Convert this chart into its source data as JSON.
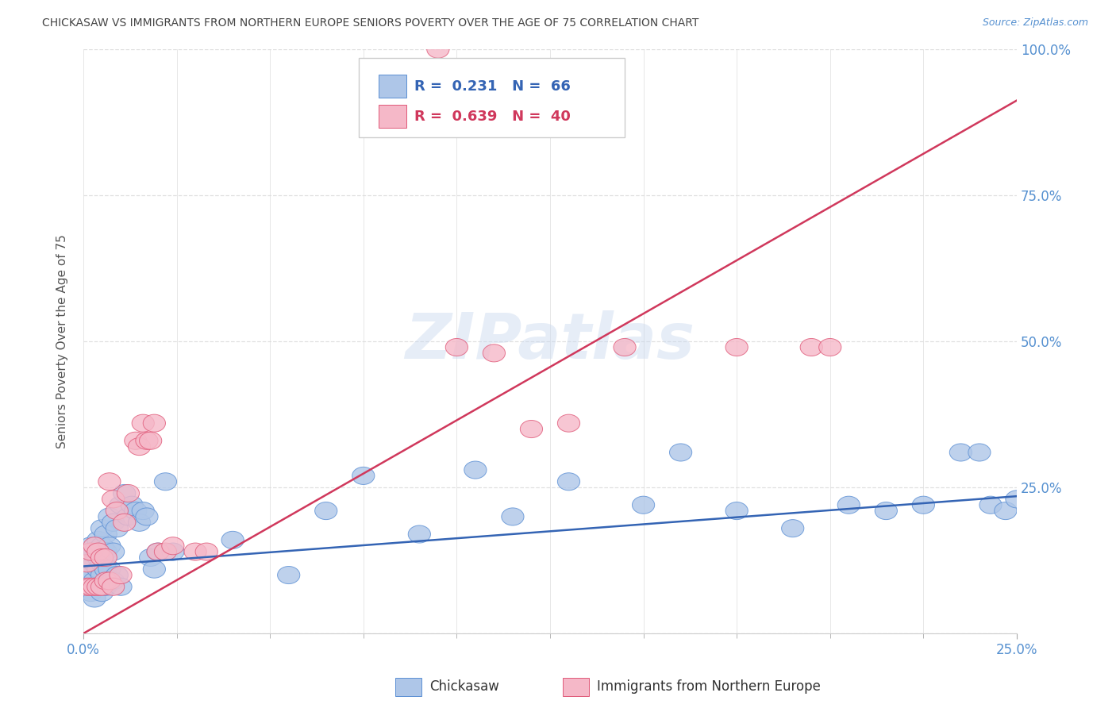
{
  "title": "CHICKASAW VS IMMIGRANTS FROM NORTHERN EUROPE SENIORS POVERTY OVER THE AGE OF 75 CORRELATION CHART",
  "source": "Source: ZipAtlas.com",
  "ylabel": "Seniors Poverty Over the Age of 75",
  "watermark": "ZIPatlas",
  "blue_label": "Chickasaw",
  "pink_label": "Immigrants from Northern Europe",
  "blue_R": "0.231",
  "blue_N": "66",
  "pink_R": "0.639",
  "pink_N": "40",
  "xlim": [
    0,
    0.25
  ],
  "ylim": [
    0,
    1.0
  ],
  "blue_color": "#aec6e8",
  "blue_edge_color": "#5b8fd4",
  "pink_color": "#f5b8c8",
  "pink_edge_color": "#e05878",
  "blue_line_color": "#3464b4",
  "pink_line_color": "#d0385c",
  "title_color": "#444444",
  "right_axis_color": "#5590d0",
  "grid_color": "#e0e0e0",
  "blue_intercept": 0.115,
  "blue_slope": 0.48,
  "pink_intercept": 0.0,
  "pink_slope": 3.65,
  "blue_x": [
    0.001,
    0.001,
    0.001,
    0.002,
    0.002,
    0.002,
    0.002,
    0.003,
    0.003,
    0.003,
    0.003,
    0.004,
    0.004,
    0.004,
    0.004,
    0.005,
    0.005,
    0.005,
    0.005,
    0.005,
    0.006,
    0.006,
    0.006,
    0.006,
    0.007,
    0.007,
    0.007,
    0.008,
    0.008,
    0.008,
    0.009,
    0.009,
    0.01,
    0.01,
    0.011,
    0.012,
    0.013,
    0.014,
    0.015,
    0.016,
    0.017,
    0.018,
    0.019,
    0.02,
    0.022,
    0.024,
    0.04,
    0.055,
    0.065,
    0.075,
    0.09,
    0.105,
    0.115,
    0.13,
    0.15,
    0.16,
    0.175,
    0.19,
    0.205,
    0.215,
    0.225,
    0.235,
    0.24,
    0.243,
    0.247,
    0.25
  ],
  "blue_y": [
    0.12,
    0.1,
    0.08,
    0.15,
    0.13,
    0.1,
    0.07,
    0.14,
    0.12,
    0.09,
    0.06,
    0.16,
    0.13,
    0.11,
    0.08,
    0.18,
    0.15,
    0.12,
    0.1,
    0.07,
    0.17,
    0.14,
    0.11,
    0.08,
    0.2,
    0.15,
    0.11,
    0.19,
    0.14,
    0.09,
    0.18,
    0.1,
    0.22,
    0.08,
    0.24,
    0.2,
    0.22,
    0.21,
    0.19,
    0.21,
    0.2,
    0.13,
    0.11,
    0.14,
    0.26,
    0.14,
    0.16,
    0.1,
    0.21,
    0.27,
    0.17,
    0.28,
    0.2,
    0.26,
    0.22,
    0.31,
    0.21,
    0.18,
    0.22,
    0.21,
    0.22,
    0.31,
    0.31,
    0.22,
    0.21,
    0.23
  ],
  "pink_x": [
    0.001,
    0.001,
    0.002,
    0.002,
    0.003,
    0.003,
    0.004,
    0.004,
    0.005,
    0.005,
    0.006,
    0.006,
    0.007,
    0.007,
    0.008,
    0.008,
    0.009,
    0.01,
    0.011,
    0.012,
    0.014,
    0.015,
    0.016,
    0.017,
    0.018,
    0.019,
    0.02,
    0.022,
    0.024,
    0.03,
    0.033,
    0.095,
    0.1,
    0.11,
    0.12,
    0.13,
    0.145,
    0.175,
    0.195,
    0.2
  ],
  "pink_y": [
    0.12,
    0.08,
    0.14,
    0.08,
    0.15,
    0.08,
    0.14,
    0.08,
    0.13,
    0.08,
    0.13,
    0.09,
    0.26,
    0.09,
    0.23,
    0.08,
    0.21,
    0.1,
    0.19,
    0.24,
    0.33,
    0.32,
    0.36,
    0.33,
    0.33,
    0.36,
    0.14,
    0.14,
    0.15,
    0.14,
    0.14,
    1.0,
    0.49,
    0.48,
    0.35,
    0.36,
    0.49,
    0.49,
    0.49,
    0.49
  ]
}
